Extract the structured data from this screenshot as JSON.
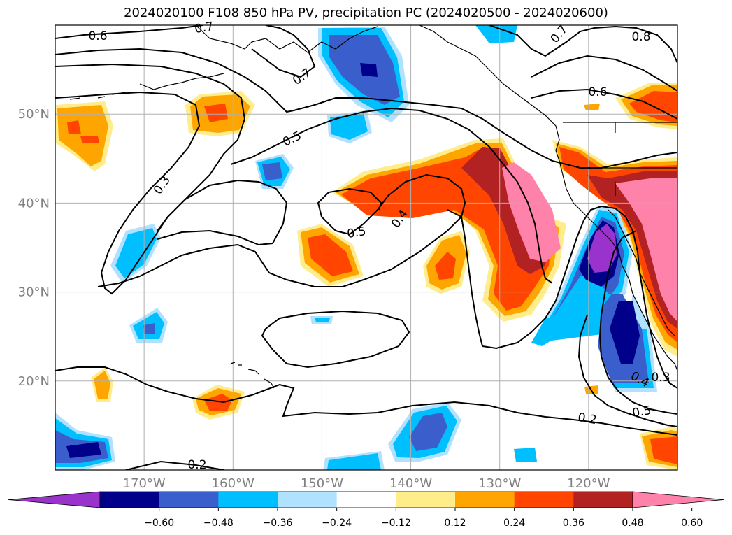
{
  "title": "2024020100 F108 850 hPa PV, precipitation PC (2024020500 - 2024020600)",
  "map": {
    "lon_ticks": [
      {
        "lon": -170,
        "label": "170°W"
      },
      {
        "lon": -160,
        "label": "160°W"
      },
      {
        "lon": -150,
        "label": "150°W"
      },
      {
        "lon": -140,
        "label": "140°W"
      },
      {
        "lon": -130,
        "label": "130°W"
      },
      {
        "lon": -120,
        "label": "120°W"
      }
    ],
    "lat_ticks": [
      {
        "lat": 50,
        "label": "50°N"
      },
      {
        "lat": 40,
        "label": "40°N"
      },
      {
        "lat": 30,
        "label": "30°N"
      },
      {
        "lat": 20,
        "label": "20°N"
      }
    ],
    "contour_labels": [
      "0.6",
      "0.7",
      "0.7",
      "0.7",
      "0.8",
      "0.6",
      "0.5",
      "0.3",
      "0.5",
      "0.4",
      "0.4",
      "0.3",
      "0.5",
      "0.2",
      "0.2"
    ]
  },
  "colorbar": {
    "colors": [
      "#9933cc",
      "#00008b",
      "#3a5fcd",
      "#00bfff",
      "#b0e2ff",
      "#ffffff",
      "#ffec8b",
      "#ffa500",
      "#ff4500",
      "#b22222",
      "#ff82ab"
    ],
    "tick_labels": [
      "−0.60",
      "−0.48",
      "−0.36",
      "−0.24",
      "−0.12",
      "0.12",
      "0.24",
      "0.36",
      "0.48",
      "0.60"
    ]
  }
}
